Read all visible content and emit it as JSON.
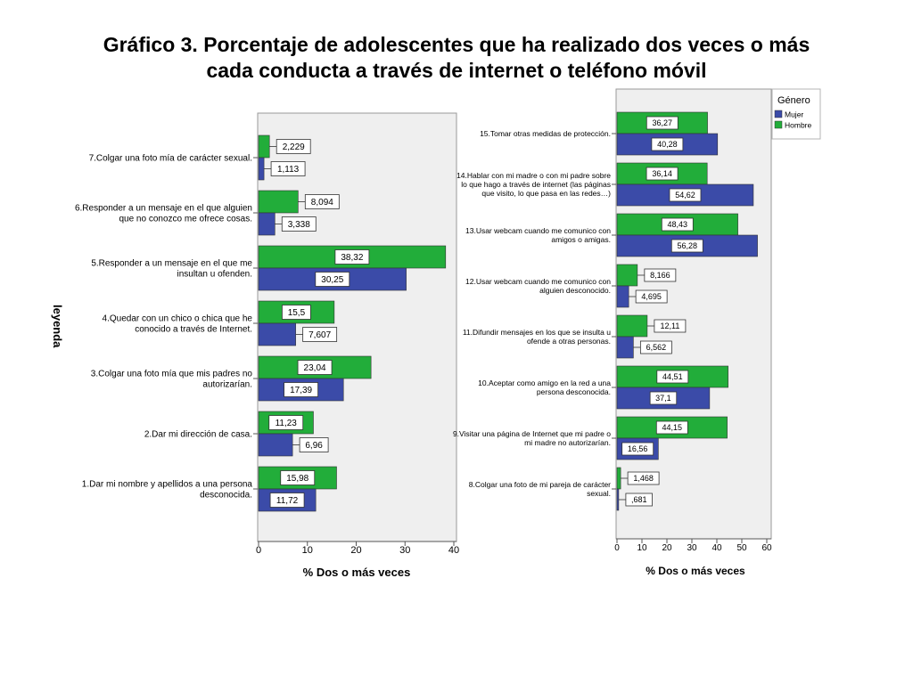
{
  "title_lines": [
    "Gráfico 3. Porcentaje de adolescentes que ha realizado dos veces o más",
    "cada conducta a través de internet o teléfono móvil"
  ],
  "legend": {
    "title": "Género",
    "items": [
      {
        "label": "Mujer",
        "color": "#3b4ba8"
      },
      {
        "label": "Hombre",
        "color": "#22ad3a"
      }
    ]
  },
  "stray_label": "leyenda",
  "chart_data": [
    {
      "type": "bar",
      "orientation": "horizontal",
      "xlabel": "% Dos o más veces",
      "xlim": [
        0,
        40
      ],
      "xticks": [
        "0",
        "10",
        "20",
        "30",
        "40"
      ],
      "grid": false,
      "categories": [
        [
          "7.Colgar una foto mía de carácter sexual."
        ],
        [
          "6.Responder a un mensaje en el que alguien",
          "que no conozco me ofrece cosas."
        ],
        [
          "5.Responder a un mensaje en el que me",
          "insultan u ofenden."
        ],
        [
          "4.Quedar con un chico o chica que he",
          "conocido a través de Internet."
        ],
        [
          "3.Colgar una foto mía que mis padres no",
          "autorizarían."
        ],
        [
          "2.Dar mi dirección de casa."
        ],
        [
          "1.Dar mi nombre y apellidos a una persona",
          "desconocida."
        ]
      ],
      "series": [
        {
          "name": "Hombre",
          "color": "#22ad3a",
          "values": [
            2.229,
            8.094,
            38.32,
            15.5,
            23.04,
            11.23,
            15.98
          ],
          "labels": [
            "2,229",
            "8,094",
            "38,32",
            "15,5",
            "23,04",
            "11,23",
            "15,98"
          ]
        },
        {
          "name": "Mujer",
          "color": "#3b4ba8",
          "values": [
            1.113,
            3.338,
            30.25,
            7.607,
            17.39,
            6.96,
            11.72
          ],
          "labels": [
            "1,113",
            "3,338",
            "30,25",
            "7,607",
            "17,39",
            "6,96",
            "11,72"
          ]
        }
      ]
    },
    {
      "type": "bar",
      "orientation": "horizontal",
      "xlabel": "% Dos o más veces",
      "xlim": [
        0,
        60
      ],
      "xticks": [
        "0",
        "10",
        "20",
        "30",
        "40",
        "50",
        "60"
      ],
      "grid": false,
      "legend_position": "top-right",
      "categories": [
        [
          "15.Tomar otras medidas de protección."
        ],
        [
          "14.Hablar con mi madre o con mi padre sobre",
          "lo que hago a través de internet (las páginas",
          "que visito, lo que pasa en las redes…)"
        ],
        [
          "13.Usar webcam cuando me comunico con",
          "amigos o amigas."
        ],
        [
          "12.Usar webcam cuando me comunico con",
          "alguien desconocido."
        ],
        [
          "11.Difundir mensajes en los que se insulta u",
          "ofende a otras personas."
        ],
        [
          "10.Aceptar como amigo en la red a una",
          "persona desconocida."
        ],
        [
          "9.Visitar una página de Internet que mi padre o",
          "mi madre no autorizarían."
        ],
        [
          "8.Colgar una foto de mi pareja de carácter",
          "sexual."
        ]
      ],
      "series": [
        {
          "name": "Hombre",
          "color": "#22ad3a",
          "values": [
            36.27,
            36.14,
            48.43,
            8.166,
            12.11,
            44.51,
            44.15,
            1.468
          ],
          "labels": [
            "36,27",
            "36,14",
            "48,43",
            "8,166",
            "12,11",
            "44,51",
            "44,15",
            "1,468"
          ]
        },
        {
          "name": "Mujer",
          "color": "#3b4ba8",
          "values": [
            40.28,
            54.62,
            56.28,
            4.695,
            6.562,
            37.1,
            16.56,
            0.681
          ],
          "labels": [
            "40,28",
            "54,62",
            "56,28",
            "4,695",
            "6,562",
            "37,1",
            "16,56",
            ",681"
          ]
        }
      ]
    }
  ]
}
